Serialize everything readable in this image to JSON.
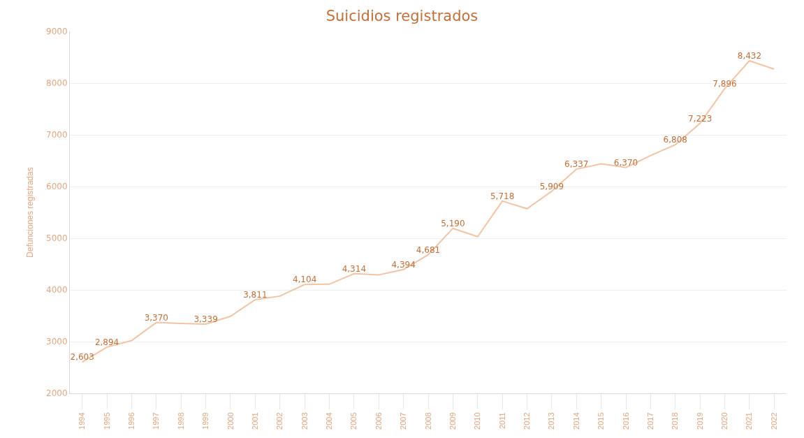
{
  "chart_data": {
    "type": "line",
    "title": "Suicidios registrados",
    "ylabel": "Defunciones registradas",
    "categories": [
      "1994",
      "1995",
      "1996",
      "1997",
      "1998",
      "1999",
      "2000",
      "2001",
      "2002",
      "2003",
      "2004",
      "2005",
      "2006",
      "2007",
      "2008",
      "2009",
      "2010",
      "2011",
      "2012",
      "2013",
      "2014",
      "2015",
      "2016",
      "2017",
      "2018",
      "2019",
      "2020",
      "2021",
      "2022"
    ],
    "series": [
      {
        "color": "#f2c4a6",
        "values": [
          2603,
          2894,
          3020,
          3370,
          3350,
          3339,
          3490,
          3811,
          3880,
          4104,
          4110,
          4314,
          4290,
          4394,
          4681,
          5190,
          5030,
          5718,
          5570,
          5909,
          6337,
          6440,
          6370,
          6600,
          6808,
          7223,
          7896,
          8432,
          8270
        ],
        "value_labels": [
          "2,603",
          "2,894",
          null,
          "3,370",
          null,
          "3,339",
          null,
          "3,811",
          null,
          "4,104",
          null,
          "4,314",
          null,
          "4,394",
          "4,681",
          "5,190",
          null,
          "5,718",
          null,
          "5,909",
          "6,337",
          null,
          "6,370",
          null,
          "6,808",
          "7,223",
          "7,896",
          "8,432",
          null
        ]
      }
    ],
    "ylim": [
      2000,
      9000
    ],
    "yticks": [
      2000,
      3000,
      4000,
      5000,
      6000,
      7000,
      8000,
      9000
    ],
    "grid": "y",
    "marker": "none",
    "line_style": "solid"
  }
}
